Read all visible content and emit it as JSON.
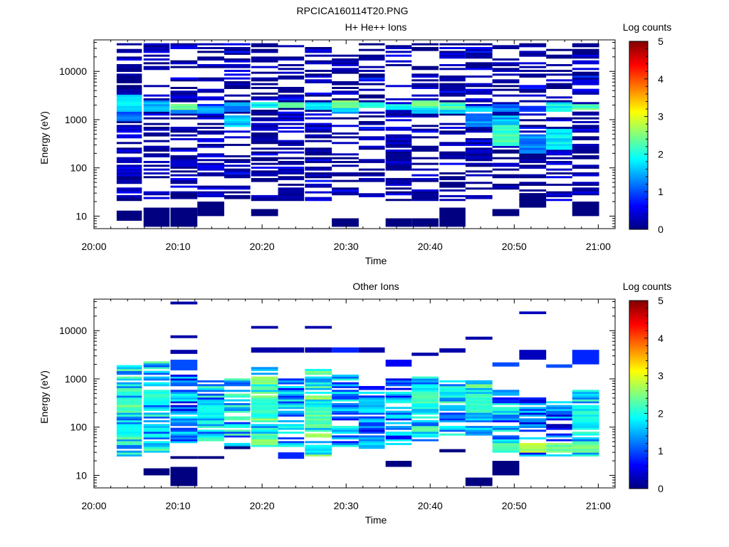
{
  "figure_title": "RPCICA160114T20.PNG",
  "colormap": [
    "#000080",
    "#0000ff",
    "#0080ff",
    "#00ffff",
    "#80ff80",
    "#ffff00",
    "#ff8000",
    "#ff0000",
    "#800000"
  ],
  "chart_data": [
    {
      "type": "heatmap",
      "title": "H+ He++ Ions",
      "xlabel": "Time",
      "ylabel": "Energy (eV)",
      "colorbar_label": "Log counts",
      "colorbar_ticks": [
        "0",
        "1",
        "2",
        "3",
        "4",
        "5"
      ],
      "xlim": [
        "20:00",
        "21:02"
      ],
      "x_ticks": [
        "20:00",
        "20:10",
        "20:20",
        "20:30",
        "20:40",
        "20:50",
        "21:00"
      ],
      "y_scale": "log",
      "ylim": [
        5.5,
        45000
      ],
      "y_ticks": [
        "10",
        "100",
        "1000",
        "10000"
      ],
      "clim": [
        0,
        5
      ],
      "time_bins_min": [
        [
          2.7,
          5.7
        ],
        [
          5.9,
          9
        ],
        [
          9.1,
          12.3
        ],
        [
          12.3,
          15.5
        ],
        [
          15.5,
          18.6
        ],
        [
          18.7,
          21.9
        ],
        [
          21.9,
          25
        ],
        [
          25.1,
          28.3
        ],
        [
          28.3,
          31.5
        ],
        [
          31.5,
          34.6
        ],
        [
          34.7,
          37.8
        ],
        [
          37.8,
          41
        ],
        [
          41.1,
          44.2
        ],
        [
          44.2,
          47.4
        ],
        [
          47.4,
          50.6
        ],
        [
          50.6,
          53.8
        ],
        [
          53.8,
          56.9
        ],
        [
          56.9,
          60.1
        ]
      ],
      "columns": [
        {
          "d": 0.7,
          "m": [
            [
              1500,
              3200,
              1.8
            ],
            [
              900,
              1500,
              1.2
            ]
          ],
          "e": [
            [
              8,
              13,
              0
            ]
          ]
        },
        {
          "d": 0.45,
          "m": [
            [
              1500,
              2600,
              1.5
            ]
          ],
          "e": [
            [
              6,
              15,
              0
            ]
          ]
        },
        {
          "d": 0.6,
          "m": [
            [
              1600,
              2100,
              2.5
            ],
            [
              1300,
              1600,
              1.4
            ]
          ],
          "e": [
            [
              6,
              15,
              0
            ]
          ]
        },
        {
          "d": 0.5,
          "m": [
            [
              1400,
              1900,
              1.6
            ]
          ],
          "e": [
            [
              10,
              20,
              0
            ]
          ]
        },
        {
          "d": 0.55,
          "m": [
            [
              700,
              1200,
              1.6
            ],
            [
              1500,
              2300,
              1.3
            ]
          ],
          "e": []
        },
        {
          "d": 0.5,
          "m": [
            [
              1700,
              2400,
              1.9
            ]
          ],
          "e": [
            [
              10,
              14,
              0
            ]
          ]
        },
        {
          "d": 0.5,
          "m": [
            [
              1700,
              2300,
              2.2
            ]
          ],
          "e": []
        },
        {
          "d": 0.5,
          "m": [
            [
              1600,
              2300,
              1.9
            ]
          ],
          "e": []
        },
        {
          "d": 0.45,
          "m": [
            [
              1700,
              2500,
              2.5
            ],
            [
              1400,
              1700,
              1.5
            ]
          ],
          "e": [
            [
              6,
              9,
              0
            ]
          ]
        },
        {
          "d": 0.45,
          "m": [
            [
              1700,
              2300,
              2.1
            ]
          ],
          "e": []
        },
        {
          "d": 0.45,
          "m": [
            [
              1600,
              2100,
              1.9
            ]
          ],
          "e": [
            [
              6,
              9,
              0
            ]
          ]
        },
        {
          "d": 0.5,
          "m": [
            [
              1700,
              2600,
              2.4
            ],
            [
              1400,
              1700,
              1.5
            ]
          ],
          "e": [
            [
              6,
              9,
              0
            ]
          ]
        },
        {
          "d": 0.55,
          "m": [
            [
              1600,
              2300,
              2.2
            ],
            [
              1300,
              1600,
              1.5
            ]
          ],
          "e": [
            [
              6,
              15,
              0
            ]
          ]
        },
        {
          "d": 0.55,
          "m": [
            [
              700,
              1400,
              1.3
            ],
            [
              1500,
              2000,
              1.6
            ]
          ],
          "e": []
        },
        {
          "d": 0.35,
          "m": [
            [
              300,
              750,
              2.2
            ],
            [
              750,
              1200,
              1.5
            ],
            [
              1500,
              2100,
              1.2
            ]
          ],
          "e": [
            [
              10,
              14,
              0
            ]
          ]
        },
        {
          "d": 0.5,
          "m": [
            [
              200,
              500,
              1.3
            ],
            [
              1500,
              2000,
              1.0
            ]
          ],
          "e": [
            [
              15,
              30,
              0
            ]
          ]
        },
        {
          "d": 0.45,
          "m": [
            [
              250,
              650,
              1.8
            ],
            [
              1500,
              2300,
              1.9
            ]
          ],
          "e": []
        },
        {
          "d": 0.5,
          "m": [
            [
              1600,
              2200,
              2.3
            ]
          ],
          "e": [
            [
              10,
              20,
              0
            ]
          ]
        }
      ]
    },
    {
      "type": "heatmap",
      "title": "Other Ions",
      "xlabel": "Time",
      "ylabel": "Energy (eV)",
      "colorbar_label": "Log counts",
      "colorbar_ticks": [
        "0",
        "1",
        "2",
        "3",
        "4",
        "5"
      ],
      "xlim": [
        "20:00",
        "21:02"
      ],
      "x_ticks": [
        "20:00",
        "20:10",
        "20:20",
        "20:30",
        "20:40",
        "20:50",
        "21:00"
      ],
      "y_scale": "log",
      "ylim": [
        5.5,
        45000
      ],
      "y_ticks": [
        "10",
        "100",
        "1000",
        "10000"
      ],
      "clim": [
        0,
        5
      ],
      "time_bins_min": [
        [
          2.7,
          5.7
        ],
        [
          5.9,
          9
        ],
        [
          9.1,
          12.3
        ],
        [
          12.3,
          15.5
        ],
        [
          15.5,
          18.6
        ],
        [
          18.7,
          21.9
        ],
        [
          21.9,
          25
        ],
        [
          25.1,
          28.3
        ],
        [
          28.3,
          31.5
        ],
        [
          31.5,
          34.6
        ],
        [
          34.7,
          37.8
        ],
        [
          37.8,
          41
        ],
        [
          41.1,
          44.2
        ],
        [
          44.2,
          47.4
        ],
        [
          47.4,
          50.6
        ],
        [
          50.6,
          53.8
        ],
        [
          53.8,
          56.9
        ],
        [
          56.9,
          60.1
        ]
      ],
      "columns": [
        {
          "r": [
            25,
            2000
          ],
          "c": 1.8,
          "d": 0.85,
          "m": [
            [
              200,
              400,
              2.3
            ],
            [
              60,
              120,
              2.0
            ]
          ],
          "e": []
        },
        {
          "r": [
            30,
            2500
          ],
          "c": 1.7,
          "d": 0.85,
          "m": [
            [
              300,
              600,
              2.1
            ]
          ],
          "e": [
            [
              10,
              14,
              0
            ]
          ]
        },
        {
          "r": [
            40,
            1200
          ],
          "c": 1.2,
          "d": 0.8,
          "m": [],
          "e": [
            [
              22,
              25,
              0
            ],
            [
              6,
              15,
              0
            ],
            [
              1500,
              2500,
              1.0
            ],
            [
              3300,
              4000,
              0.2
            ],
            [
              7000,
              8000,
              0.2
            ],
            [
              35000,
              40000,
              0.2
            ]
          ]
        },
        {
          "r": [
            50,
            900
          ],
          "c": 1.5,
          "d": 0.8,
          "m": [
            [
              150,
              300,
              1.9
            ]
          ],
          "e": [
            [
              22,
              25,
              0
            ]
          ]
        },
        {
          "r": [
            40,
            1000
          ],
          "c": 1.6,
          "d": 0.85,
          "m": [],
          "e": [
            [
              35,
              40,
              0
            ]
          ]
        },
        {
          "r": [
            40,
            1700
          ],
          "c": 1.9,
          "d": 0.9,
          "m": [
            [
              150,
              400,
              2.1
            ]
          ],
          "e": [
            [
              11000,
              12500,
              0.2
            ],
            [
              3500,
              4500,
              0.2
            ]
          ]
        },
        {
          "r": [
            40,
            1000
          ],
          "c": 1.4,
          "d": 0.75,
          "m": [],
          "e": [
            [
              22,
              30,
              0.8
            ],
            [
              3500,
              4500,
              0.2
            ]
          ]
        },
        {
          "r": [
            25,
            1600
          ],
          "c": 2.0,
          "d": 0.9,
          "m": [
            [
              100,
              250,
              2.3
            ]
          ],
          "e": [
            [
              11000,
              12500,
              0.2
            ],
            [
              3500,
              4500,
              0.2
            ]
          ]
        },
        {
          "r": [
            35,
            1200
          ],
          "c": 1.3,
          "d": 0.75,
          "m": [],
          "e": [
            [
              3500,
              4500,
              0.8
            ]
          ]
        },
        {
          "r": [
            35,
            800
          ],
          "c": 1.2,
          "d": 0.75,
          "m": [
            [
              200,
              400,
              1.6
            ]
          ],
          "e": [
            [
              3500,
              4500,
              0.2
            ]
          ]
        },
        {
          "r": [
            40,
            1000
          ],
          "c": 1.3,
          "d": 0.75,
          "m": [],
          "e": [
            [
              15,
              20,
              0
            ],
            [
              1800,
              2500,
              0.6
            ]
          ]
        },
        {
          "r": [
            50,
            1100
          ],
          "c": 1.7,
          "d": 0.8,
          "m": [
            [
              300,
              600,
              2.1
            ]
          ],
          "e": [
            [
              3000,
              3500,
              0.2
            ]
          ]
        },
        {
          "r": [
            60,
            1000
          ],
          "c": 1.6,
          "d": 0.75,
          "m": [
            [
              400,
              700,
              1.9
            ]
          ],
          "e": [
            [
              30,
              35,
              0
            ],
            [
              3500,
              4300,
              0.2
            ]
          ]
        },
        {
          "r": [
            60,
            900
          ],
          "c": 1.8,
          "d": 0.8,
          "m": [
            [
              200,
              500,
              2.1
            ]
          ],
          "e": [
            [
              6,
              9,
              0
            ],
            [
              6500,
              7500,
              0.2
            ]
          ]
        },
        {
          "r": [
            30,
            600
          ],
          "c": 1.4,
          "d": 0.75,
          "m": [
            [
              30,
              45,
              2.3
            ]
          ],
          "e": [
            [
              10,
              20,
              0
            ],
            [
              1800,
              2200,
              1.0
            ]
          ]
        },
        {
          "r": [
            25,
            400
          ],
          "c": 1.0,
          "d": 0.7,
          "m": [
            [
              30,
              45,
              2.7
            ]
          ],
          "e": [
            [
              2500,
              4000,
              0.3
            ],
            [
              22000,
              25000,
              0.3
            ]
          ]
        },
        {
          "r": [
            25,
            350
          ],
          "c": 1.0,
          "d": 0.65,
          "m": [
            [
              30,
              45,
              2.4
            ]
          ],
          "e": [
            [
              1700,
              2000,
              1.0
            ]
          ]
        },
        {
          "r": [
            25,
            600
          ],
          "c": 1.6,
          "d": 0.85,
          "m": [
            [
              30,
              45,
              2.5
            ],
            [
              100,
              250,
              1.9
            ]
          ],
          "e": [
            [
              2000,
              4000,
              0.8
            ]
          ]
        }
      ]
    }
  ]
}
